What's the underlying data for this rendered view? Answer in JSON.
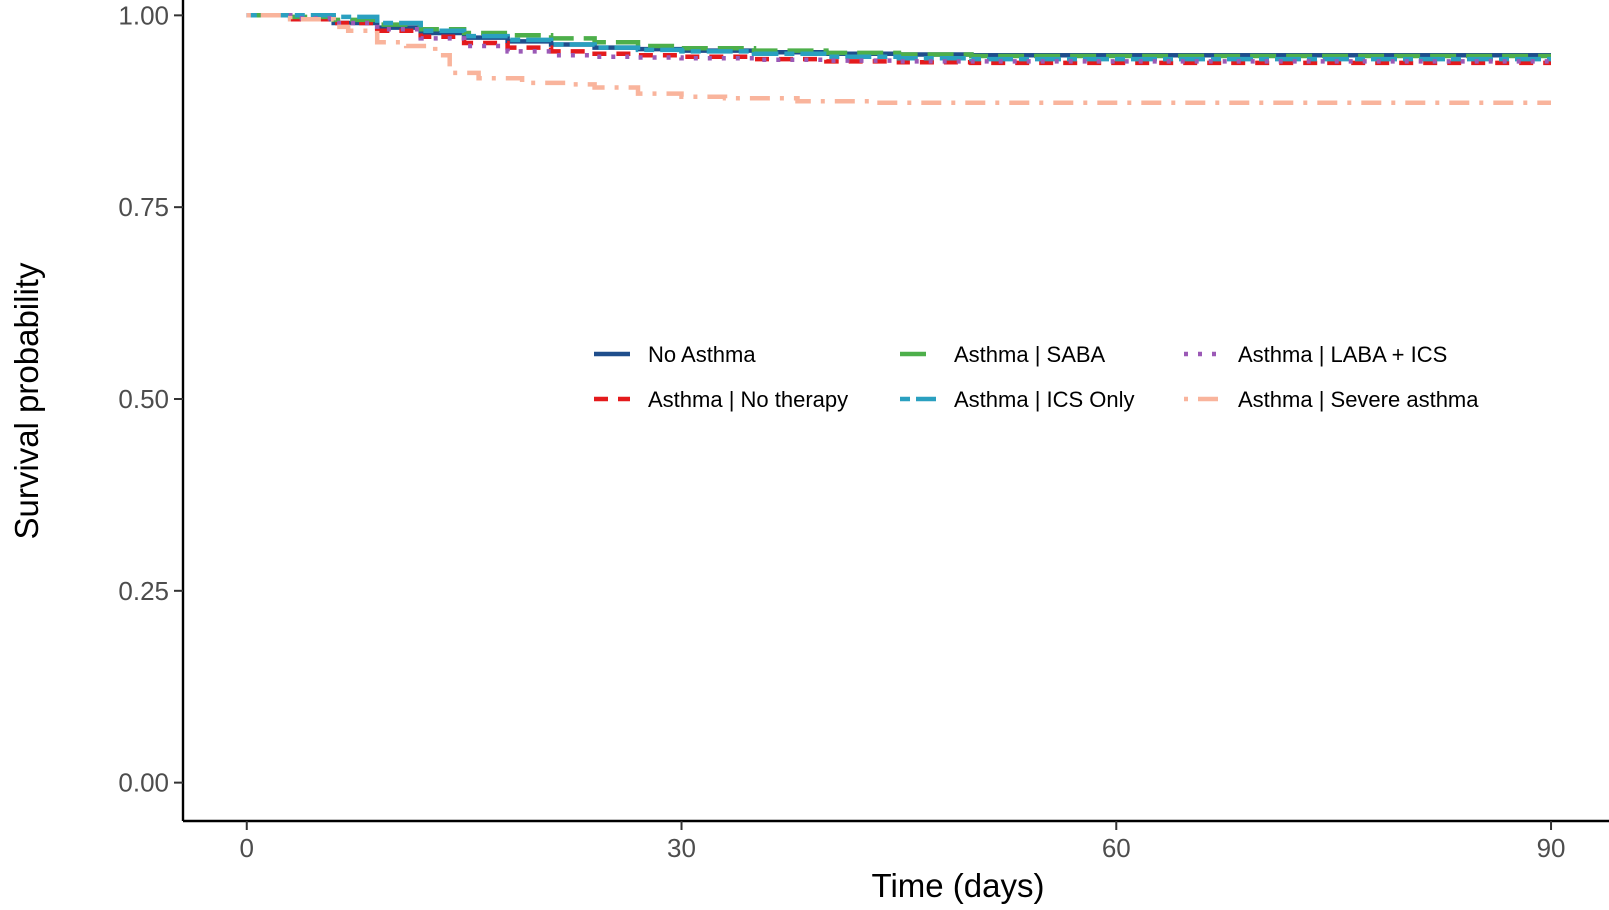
{
  "chart_data": {
    "type": "line",
    "title": "",
    "xlabel": "Time (days)",
    "ylabel": "Survival probability",
    "xlim": [
      -4.4,
      94
    ],
    "ylim": [
      -0.05,
      1.02
    ],
    "x_ticks": [
      0,
      30,
      60,
      90
    ],
    "x_tick_labels": [
      "0",
      "30",
      "60",
      "90"
    ],
    "y_ticks": [
      0,
      0.25,
      0.5,
      0.75,
      1.0
    ],
    "y_tick_labels": [
      "0.00",
      "0.25",
      "0.50",
      "0.75",
      "1.00"
    ],
    "grid": false,
    "legend_position": "center-right",
    "series": [
      {
        "name": "No Asthma",
        "color": "#1f4e8c",
        "dash": "solid",
        "x": [
          0,
          3,
          6,
          9,
          12,
          15,
          18,
          21,
          24,
          27,
          30,
          35,
          40,
          45,
          50,
          60,
          70,
          80,
          90
        ],
        "y": [
          1.0,
          0.995,
          0.99,
          0.984,
          0.977,
          0.971,
          0.966,
          0.962,
          0.958,
          0.956,
          0.954,
          0.952,
          0.95,
          0.949,
          0.948,
          0.948,
          0.948,
          0.948,
          0.948
        ]
      },
      {
        "name": "Asthma | No therapy",
        "color": "#e41a1c",
        "dash": "dashed",
        "x": [
          0,
          3,
          6,
          9,
          12,
          15,
          18,
          21,
          24,
          27,
          30,
          35,
          40,
          45,
          50,
          60,
          70,
          80,
          90
        ],
        "y": [
          1.0,
          0.995,
          0.99,
          0.98,
          0.972,
          0.964,
          0.958,
          0.953,
          0.95,
          0.948,
          0.946,
          0.943,
          0.94,
          0.939,
          0.938,
          0.938,
          0.938,
          0.938,
          0.938
        ]
      },
      {
        "name": "Asthma | SABA",
        "color": "#4daf4a",
        "dash": "longdash",
        "x": [
          0,
          3,
          6,
          9,
          12,
          15,
          18,
          21,
          24,
          27,
          30,
          35,
          40,
          45,
          50,
          60,
          70,
          80,
          90
        ],
        "y": [
          1.0,
          0.998,
          0.994,
          0.988,
          0.982,
          0.977,
          0.974,
          0.97,
          0.965,
          0.96,
          0.957,
          0.954,
          0.951,
          0.949,
          0.947,
          0.947,
          0.947,
          0.947,
          0.947
        ]
      },
      {
        "name": "Asthma | ICS Only",
        "color": "#2aa0c0",
        "dash": "twodash",
        "x": [
          0,
          3,
          6,
          9,
          12,
          15,
          18,
          21,
          24,
          27,
          30,
          35,
          40,
          45,
          50,
          60,
          70,
          80,
          90
        ],
        "y": [
          1.0,
          1.0,
          0.998,
          0.99,
          0.98,
          0.973,
          0.968,
          0.962,
          0.958,
          0.955,
          0.953,
          0.95,
          0.946,
          0.944,
          0.943,
          0.943,
          0.943,
          0.943,
          0.943
        ]
      },
      {
        "name": "Asthma | LABA + ICS",
        "color": "#9b59b6",
        "dash": "dotted",
        "x": [
          0,
          3,
          6,
          9,
          12,
          15,
          18,
          21,
          24,
          27,
          30,
          35,
          40,
          45,
          50,
          60,
          70,
          80,
          90
        ],
        "y": [
          1.0,
          0.996,
          0.99,
          0.982,
          0.97,
          0.96,
          0.953,
          0.948,
          0.946,
          0.945,
          0.944,
          0.942,
          0.941,
          0.94,
          0.94,
          0.94,
          0.94,
          0.94,
          0.94
        ]
      },
      {
        "name": "Asthma | Severe asthma",
        "color": "#f9b49c",
        "dash": "dotdash",
        "x": [
          0,
          3,
          6,
          7,
          9,
          11,
          13,
          14,
          16,
          19,
          22,
          24,
          27,
          30,
          33,
          38,
          43,
          50,
          60,
          70,
          80,
          90
        ],
        "y": [
          1.0,
          0.995,
          0.985,
          0.98,
          0.965,
          0.96,
          0.948,
          0.925,
          0.918,
          0.912,
          0.91,
          0.906,
          0.898,
          0.894,
          0.892,
          0.888,
          0.886,
          0.886,
          0.886,
          0.886,
          0.886,
          0.886
        ]
      }
    ]
  }
}
